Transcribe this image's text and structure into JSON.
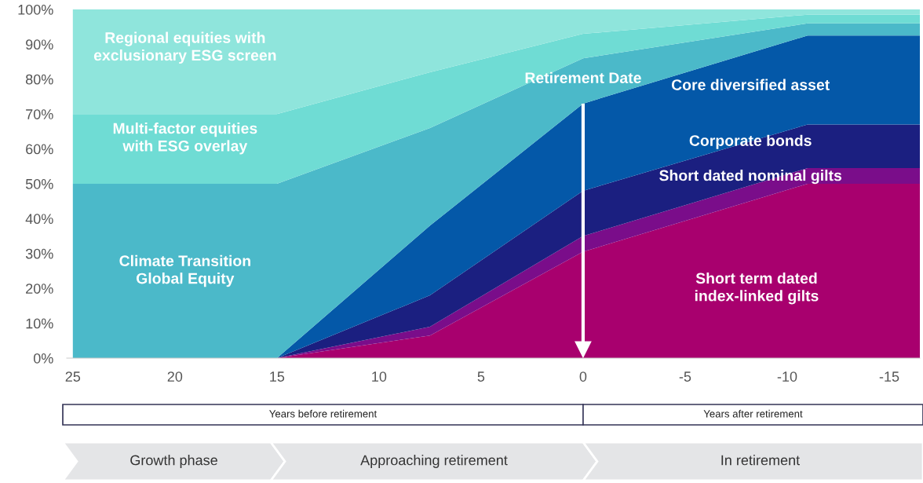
{
  "chart_data": {
    "type": "area",
    "stacked": true,
    "x": [
      25,
      15,
      7.5,
      0,
      -11,
      -16.5
    ],
    "series": [
      {
        "name": "Short term dated index-linked gilts",
        "color": "#a8006e",
        "values": [
          0,
          0,
          6.5,
          30.5,
          50,
          50
        ]
      },
      {
        "name": "Short dated nominal gilts",
        "color": "#7a0d8a",
        "values": [
          0,
          0,
          2.5,
          4.5,
          4.5,
          4.5
        ]
      },
      {
        "name": "Corporate bonds",
        "color": "#1b1f80",
        "values": [
          0,
          0,
          9,
          13,
          12.5,
          12.5
        ]
      },
      {
        "name": "Core diversified asset",
        "color": "#0458a8",
        "values": [
          0,
          0,
          20,
          25,
          25.5,
          25.5
        ]
      },
      {
        "name": "Climate Transition Global Equity",
        "color": "#4bb9c9",
        "values": [
          50,
          50,
          28,
          13,
          3.5,
          3.5
        ]
      },
      {
        "name": "Multi-factor equities with ESG overlay",
        "color": "#6fdcd4",
        "values": [
          20,
          20,
          16,
          7,
          2.5,
          2.5
        ]
      },
      {
        "name": "Regional equities with exclusionary ESG screen",
        "color": "#8fe5dc",
        "values": [
          30,
          30,
          18,
          7,
          1.5,
          1.5
        ]
      }
    ],
    "xlim": [
      25.3,
      -16.5
    ],
    "xticks": [
      25,
      20,
      15,
      10,
      5,
      0,
      -5,
      -10,
      -15
    ],
    "ylim": [
      0,
      100
    ],
    "yticks": [
      {
        "value": 0,
        "label": "0%"
      },
      {
        "value": 10,
        "label": "10%"
      },
      {
        "value": 20,
        "label": "20%"
      },
      {
        "value": 30,
        "label": "30%"
      },
      {
        "value": 40,
        "label": "40%"
      },
      {
        "value": 50,
        "label": "50%"
      },
      {
        "value": 60,
        "label": "60%"
      },
      {
        "value": 70,
        "label": "70%"
      },
      {
        "value": 80,
        "label": "80%"
      },
      {
        "value": 90,
        "label": "90%"
      },
      {
        "value": 100,
        "label": "100%"
      }
    ],
    "ref_lines": [
      {
        "axis": "x",
        "value": 0,
        "label": "Retirement Date",
        "color": "#ffffff"
      }
    ],
    "annotations": [
      "Years before retirement",
      "Years after retirement",
      "Growth phase",
      "Approaching retirement",
      "In retirement"
    ],
    "grid": false,
    "legend": false
  }
}
